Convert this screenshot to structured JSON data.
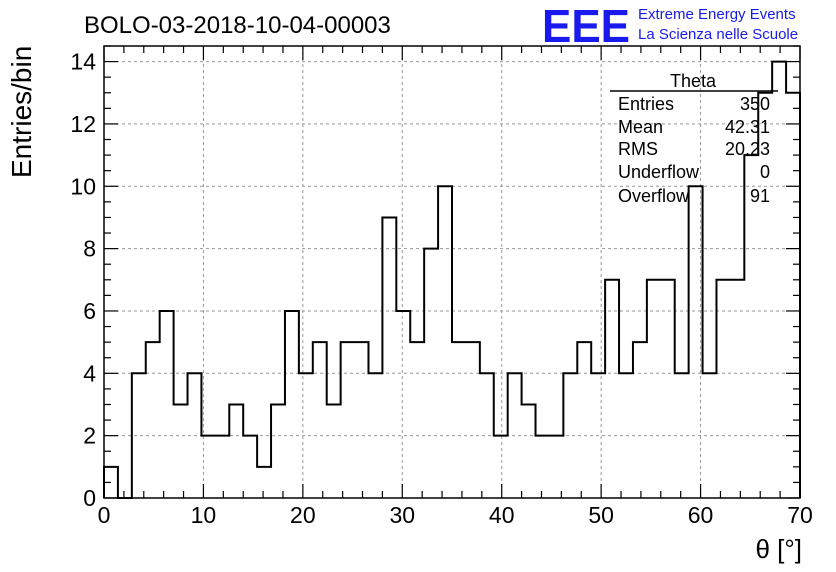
{
  "header": {
    "title": "BOLO-03-2018-10-04-00003",
    "logo_text": "EEE",
    "org_line1": "Extreme Energy Events",
    "org_line2": "La Scienza nelle Scuole"
  },
  "stats_box": {
    "title": "Theta",
    "rows": [
      {
        "label": "Entries",
        "value": "350"
      },
      {
        "label": "Mean",
        "value": "42.31"
      },
      {
        "label": "RMS",
        "value": "20.23"
      },
      {
        "label": "Underflow",
        "value": "0"
      },
      {
        "label": "Overflow",
        "value": "91"
      }
    ]
  },
  "colors": {
    "logo": "#1a1aee",
    "histogram": "#000000",
    "grid": "#999999"
  },
  "chart_data": {
    "type": "histogram",
    "title": "BOLO-03-2018-10-04-00003",
    "xlabel": "θ [°]",
    "ylabel": "Entries/bin",
    "xlim": [
      0,
      70
    ],
    "ylim": [
      0,
      14.5
    ],
    "x_ticks": [
      0,
      10,
      20,
      30,
      40,
      50,
      60,
      70
    ],
    "y_ticks": [
      0,
      2,
      4,
      6,
      8,
      10,
      12,
      14
    ],
    "grid": true,
    "bin_width": 1.4,
    "bin_start": 0,
    "values": [
      1,
      0,
      4,
      5,
      6,
      3,
      4,
      2,
      2,
      3,
      2,
      1,
      3,
      6,
      4,
      5,
      3,
      5,
      5,
      4,
      9,
      6,
      5,
      8,
      10,
      5,
      5,
      4,
      2,
      4,
      3,
      2,
      2,
      4,
      5,
      4,
      7,
      4,
      5,
      7,
      7,
      4,
      10,
      4,
      7,
      7,
      11,
      13,
      14,
      13
    ]
  }
}
